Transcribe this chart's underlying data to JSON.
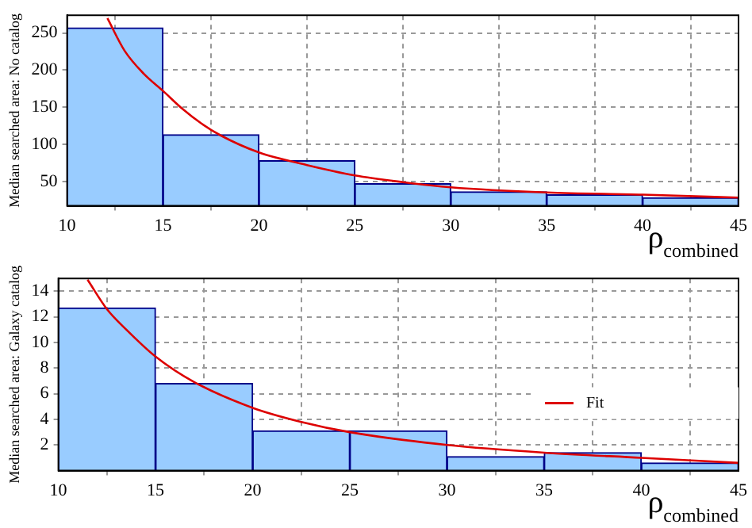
{
  "chart_data": [
    {
      "type": "histogram",
      "ylabel": "Median searched area: No catalog",
      "xlabel": "ρ$_{combined}$",
      "bins": [
        10,
        15,
        20,
        25,
        30,
        35,
        40,
        45
      ],
      "series": [
        {
          "color": "#99ccff",
          "values": [
            257,
            113,
            78,
            47,
            36,
            32,
            28
          ]
        },
        {
          "type": "line",
          "color": "#dd0000",
          "x": [
            12.1,
            13,
            14,
            15,
            16,
            17,
            18,
            20,
            22.5,
            25,
            27.5,
            30,
            35,
            40,
            45
          ],
          "values": [
            270,
            226,
            195,
            172,
            148,
            128,
            112,
            89,
            72,
            58,
            49,
            42,
            35,
            32,
            28
          ]
        }
      ],
      "xlim": [
        10,
        45
      ],
      "ylim": [
        17,
        274
      ],
      "xticks": [
        10,
        15,
        20,
        25,
        30,
        35,
        40,
        45
      ],
      "yticks": [
        50,
        100,
        150,
        200,
        250
      ],
      "grid": true
    },
    {
      "type": "histogram",
      "ylabel": "Median searched area: Galaxy catalog",
      "xlabel": "ρ$_{combined}$",
      "bins": [
        10,
        15,
        20,
        25,
        30,
        35,
        40,
        45
      ],
      "series": [
        {
          "color": "#99ccff",
          "values": [
            12.7,
            6.8,
            3.1,
            3.1,
            1.1,
            1.4,
            0.6
          ]
        },
        {
          "type": "line",
          "name": "Fit",
          "color": "#dd0000",
          "x": [
            11.5,
            12.5,
            13.5,
            15,
            17,
            20,
            22.5,
            25,
            30,
            35,
            40,
            45
          ],
          "values": [
            14.9,
            12.6,
            11.0,
            8.9,
            6.9,
            4.9,
            3.8,
            3.0,
            2.0,
            1.4,
            1.0,
            0.6
          ]
        }
      ],
      "xlim": [
        10,
        45
      ],
      "ylim": [
        0,
        15
      ],
      "xticks": [
        10,
        15,
        20,
        25,
        30,
        35,
        40,
        45
      ],
      "yticks": [
        2,
        4,
        6,
        8,
        10,
        12,
        14
      ],
      "grid": true,
      "legend": "right"
    }
  ]
}
